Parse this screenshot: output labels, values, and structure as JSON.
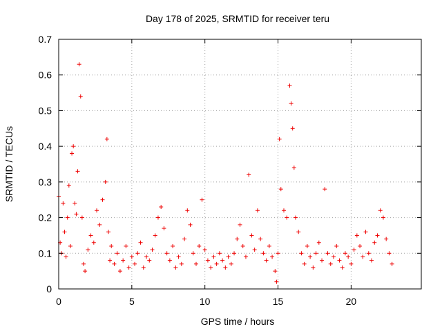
{
  "chart_data": {
    "type": "scatter",
    "title": "Day 178 of 2025, SRMTID for receiver teru",
    "xlabel": "GPS time / hours",
    "ylabel": "SRMTID / TECUs",
    "xlim": [
      0,
      24.8
    ],
    "ylim": [
      0,
      0.7
    ],
    "xticks": [
      0,
      5,
      10,
      15,
      20
    ],
    "xtick_labels": [
      "0",
      "5",
      "10",
      "15",
      "20"
    ],
    "yticks": [
      0,
      0.1,
      0.2,
      0.3,
      0.4,
      0.5,
      0.6,
      0.7
    ],
    "ytick_labels": [
      "0",
      "0.1",
      "0.2",
      "0.3",
      "0.4",
      "0.5",
      "0.6",
      "0.7"
    ],
    "grid": true,
    "marker": "+",
    "color": "#ee0000",
    "series": [
      {
        "name": "SRMTID",
        "x": [
          0.0,
          0.1,
          0.2,
          0.3,
          0.4,
          0.5,
          0.6,
          0.7,
          0.8,
          0.9,
          1.0,
          1.1,
          1.2,
          1.3,
          1.4,
          1.5,
          1.6,
          1.7,
          1.8,
          2.0,
          2.2,
          2.4,
          2.6,
          2.8,
          3.0,
          3.2,
          3.3,
          3.4,
          3.5,
          3.6,
          3.8,
          4.0,
          4.2,
          4.4,
          4.6,
          4.8,
          5.0,
          5.2,
          5.4,
          5.6,
          5.8,
          6.0,
          6.2,
          6.4,
          6.6,
          6.8,
          7.0,
          7.2,
          7.4,
          7.6,
          7.8,
          8.0,
          8.2,
          8.4,
          8.6,
          8.8,
          9.0,
          9.2,
          9.4,
          9.6,
          9.8,
          10.0,
          10.2,
          10.4,
          10.6,
          10.8,
          11.0,
          11.2,
          11.4,
          11.6,
          11.8,
          12.0,
          12.2,
          12.4,
          12.6,
          12.8,
          13.0,
          13.2,
          13.4,
          13.6,
          13.8,
          14.0,
          14.2,
          14.4,
          14.6,
          14.8,
          14.9,
          15.0,
          15.1,
          15.2,
          15.4,
          15.6,
          15.8,
          15.9,
          16.0,
          16.1,
          16.2,
          16.4,
          16.6,
          16.8,
          17.0,
          17.2,
          17.4,
          17.6,
          17.8,
          18.0,
          18.2,
          18.4,
          18.6,
          18.8,
          19.0,
          19.2,
          19.4,
          19.6,
          19.8,
          20.0,
          20.2,
          20.4,
          20.6,
          20.8,
          21.0,
          21.2,
          21.4,
          21.6,
          21.8,
          22.0,
          22.2,
          22.4,
          22.6,
          22.8
        ],
        "y": [
          0.26,
          0.13,
          0.1,
          0.24,
          0.16,
          0.09,
          0.2,
          0.29,
          0.12,
          0.38,
          0.4,
          0.24,
          0.21,
          0.33,
          0.63,
          0.54,
          0.2,
          0.07,
          0.05,
          0.11,
          0.15,
          0.13,
          0.22,
          0.18,
          0.25,
          0.3,
          0.42,
          0.16,
          0.08,
          0.12,
          0.07,
          0.1,
          0.05,
          0.08,
          0.12,
          0.06,
          0.09,
          0.07,
          0.1,
          0.13,
          0.06,
          0.09,
          0.08,
          0.11,
          0.15,
          0.2,
          0.23,
          0.17,
          0.1,
          0.08,
          0.12,
          0.06,
          0.09,
          0.07,
          0.14,
          0.22,
          0.18,
          0.1,
          0.07,
          0.12,
          0.25,
          0.11,
          0.08,
          0.06,
          0.09,
          0.07,
          0.1,
          0.08,
          0.06,
          0.09,
          0.07,
          0.1,
          0.14,
          0.18,
          0.12,
          0.09,
          0.32,
          0.15,
          0.11,
          0.22,
          0.14,
          0.1,
          0.08,
          0.12,
          0.09,
          0.05,
          0.02,
          0.1,
          0.42,
          0.28,
          0.22,
          0.2,
          0.57,
          0.52,
          0.45,
          0.34,
          0.2,
          0.16,
          0.1,
          0.07,
          0.12,
          0.09,
          0.06,
          0.1,
          0.13,
          0.08,
          0.28,
          0.1,
          0.07,
          0.09,
          0.12,
          0.08,
          0.06,
          0.1,
          0.09,
          0.07,
          0.11,
          0.15,
          0.12,
          0.09,
          0.16,
          0.1,
          0.08,
          0.13,
          0.15,
          0.22,
          0.2,
          0.14,
          0.1,
          0.07
        ]
      }
    ]
  }
}
